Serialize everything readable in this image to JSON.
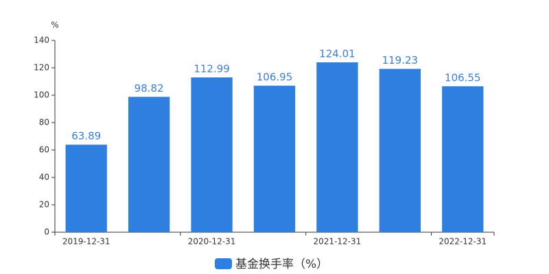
{
  "chart_data": {
    "type": "bar",
    "y_label": "%",
    "categories": [
      "2019-12-31",
      null,
      "2020-12-31",
      null,
      "2021-12-31",
      null,
      "2022-12-31"
    ],
    "series": [
      {
        "name": "基金换手率（%）",
        "color": "#2e7fe0",
        "values": [
          63.89,
          98.82,
          112.99,
          106.95,
          124.01,
          119.23,
          106.55
        ]
      }
    ],
    "ylim": [
      0,
      140
    ],
    "yticks": [
      0,
      20,
      40,
      60,
      80,
      100,
      120,
      140
    ],
    "grid": false,
    "legend": "bottom"
  }
}
